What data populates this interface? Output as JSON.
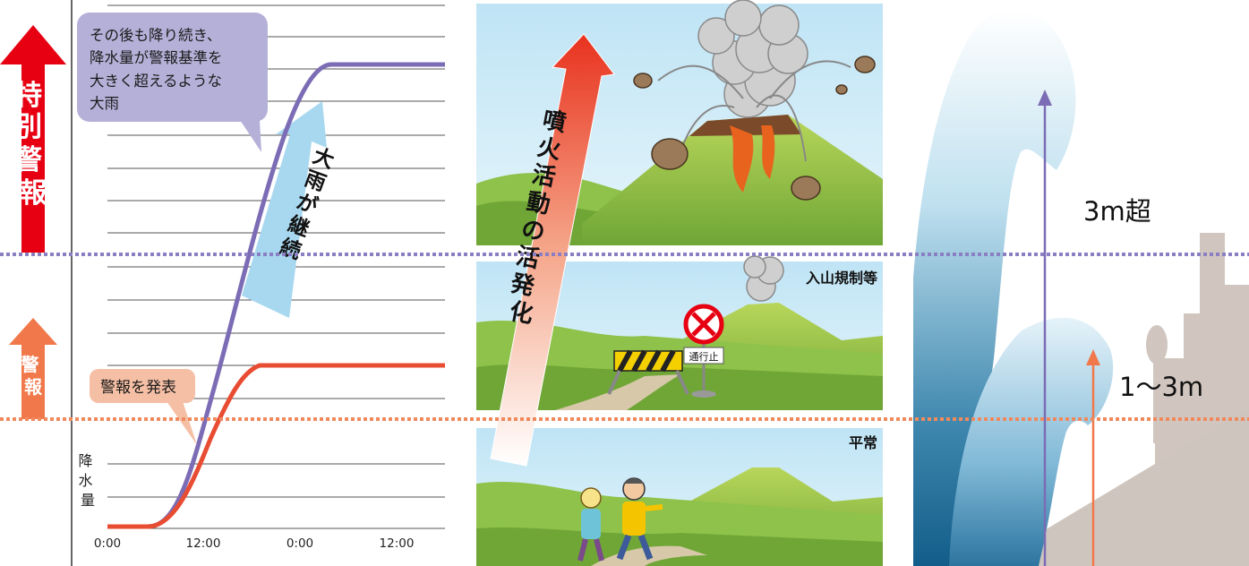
{
  "left_panel": {
    "special_warning_label": "特別警報",
    "warning_label": "警報",
    "callout_heavy_rain": [
      "その後も降り続き、",
      "降水量が警報基準を",
      "大きく超えるような",
      "大雨"
    ],
    "callout_warning_issued": "警報を発表",
    "continued_rain_label": "大雨が継続",
    "y_axis_label": "降水量",
    "x_ticks": [
      "0:00",
      "12:00",
      "0:00",
      "12:00"
    ]
  },
  "middle_panel": {
    "volcano_activity_label": "噴火活動の活発化",
    "mountain_restriction_label": "入山規制等",
    "road_closed_sign": "通行止",
    "normal_label": "平常"
  },
  "right_panel": {
    "tsunami_large_label": "3m超",
    "tsunami_medium_label": "1〜3m"
  },
  "colors": {
    "special_red": "#e60012",
    "warning_orange": "#f0784a",
    "purple_line": "#7b6cb5",
    "red_line": "#e84c32",
    "purple_dotted": "#8a7fc3",
    "orange_dotted": "#f08a5d",
    "callout_purple": "#b5b0d8",
    "callout_orange": "#f5bfa5",
    "light_blue_arrow": "#a8d8f0"
  }
}
